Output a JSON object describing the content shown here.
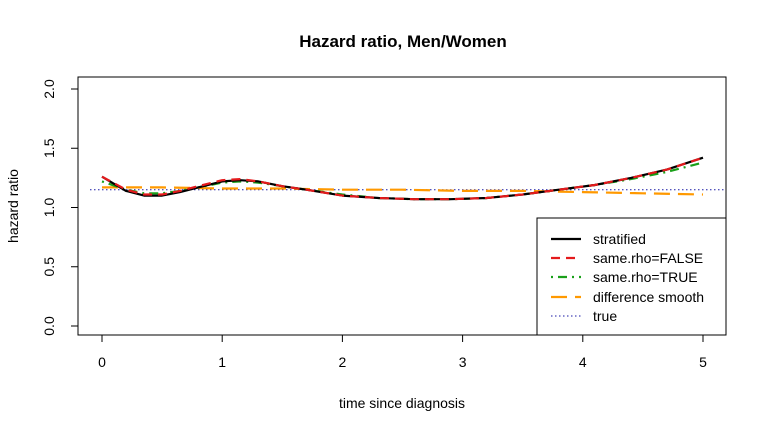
{
  "chart_data": {
    "type": "line",
    "title": "Hazard ratio, Men/Women",
    "xlabel": "time since diagnosis",
    "ylabel": "hazard ratio",
    "xlim": [
      0,
      5
    ],
    "ylim": [
      0,
      2
    ],
    "x_ticks": [
      "0",
      "1",
      "2",
      "3",
      "4",
      "5"
    ],
    "y_ticks": [
      "0.0",
      "0.5",
      "1.0",
      "1.5",
      "2.0"
    ],
    "legend_position": "bottom-right",
    "series": [
      {
        "name": "stratified",
        "color": "#000000",
        "style": "solid",
        "x": [
          0,
          0.2,
          0.35,
          0.5,
          0.65,
          0.8,
          1.0,
          1.15,
          1.3,
          1.5,
          1.7,
          2.0,
          2.3,
          2.6,
          2.9,
          3.2,
          3.5,
          3.8,
          4.1,
          4.4,
          4.7,
          5.0
        ],
        "y": [
          1.26,
          1.14,
          1.1,
          1.1,
          1.13,
          1.17,
          1.22,
          1.23,
          1.22,
          1.18,
          1.15,
          1.1,
          1.08,
          1.07,
          1.07,
          1.08,
          1.11,
          1.15,
          1.19,
          1.25,
          1.32,
          1.42
        ]
      },
      {
        "name": "same.rho=FALSE",
        "color": "#e41a1c",
        "style": "dashed",
        "x": [
          0,
          0.2,
          0.35,
          0.5,
          0.65,
          0.8,
          1.0,
          1.15,
          1.3,
          1.5,
          1.7,
          2.0,
          2.3,
          2.6,
          2.9,
          3.2,
          3.5,
          3.8,
          4.1,
          4.4,
          4.7,
          5.0
        ],
        "y": [
          1.26,
          1.15,
          1.11,
          1.11,
          1.14,
          1.18,
          1.23,
          1.24,
          1.22,
          1.18,
          1.15,
          1.1,
          1.08,
          1.07,
          1.07,
          1.08,
          1.11,
          1.15,
          1.19,
          1.25,
          1.32,
          1.42
        ]
      },
      {
        "name": "same.rho=TRUE",
        "color": "#1aa01a",
        "style": "dotdash",
        "x": [
          0,
          0.2,
          0.35,
          0.5,
          0.65,
          0.8,
          1.0,
          1.15,
          1.3,
          1.5,
          1.7,
          2.0,
          2.3,
          2.6,
          2.9,
          3.2,
          3.5,
          3.8,
          4.1,
          4.4,
          4.7,
          5.0
        ],
        "y": [
          1.22,
          1.15,
          1.12,
          1.12,
          1.14,
          1.17,
          1.21,
          1.22,
          1.21,
          1.18,
          1.15,
          1.11,
          1.08,
          1.07,
          1.07,
          1.08,
          1.11,
          1.15,
          1.19,
          1.24,
          1.3,
          1.38
        ]
      },
      {
        "name": "difference smooth",
        "color": "#ff9900",
        "style": "longdash",
        "x": [
          0,
          0.5,
          1.0,
          1.5,
          2.0,
          2.5,
          3.0,
          3.5,
          4.0,
          4.5,
          5.0
        ],
        "y": [
          1.17,
          1.17,
          1.16,
          1.16,
          1.15,
          1.15,
          1.14,
          1.14,
          1.13,
          1.12,
          1.11
        ]
      },
      {
        "name": "true",
        "color": "#1a1aa6",
        "style": "dotted",
        "x": [
          -0.1,
          5.2
        ],
        "y": [
          1.15,
          1.15
        ]
      }
    ]
  }
}
